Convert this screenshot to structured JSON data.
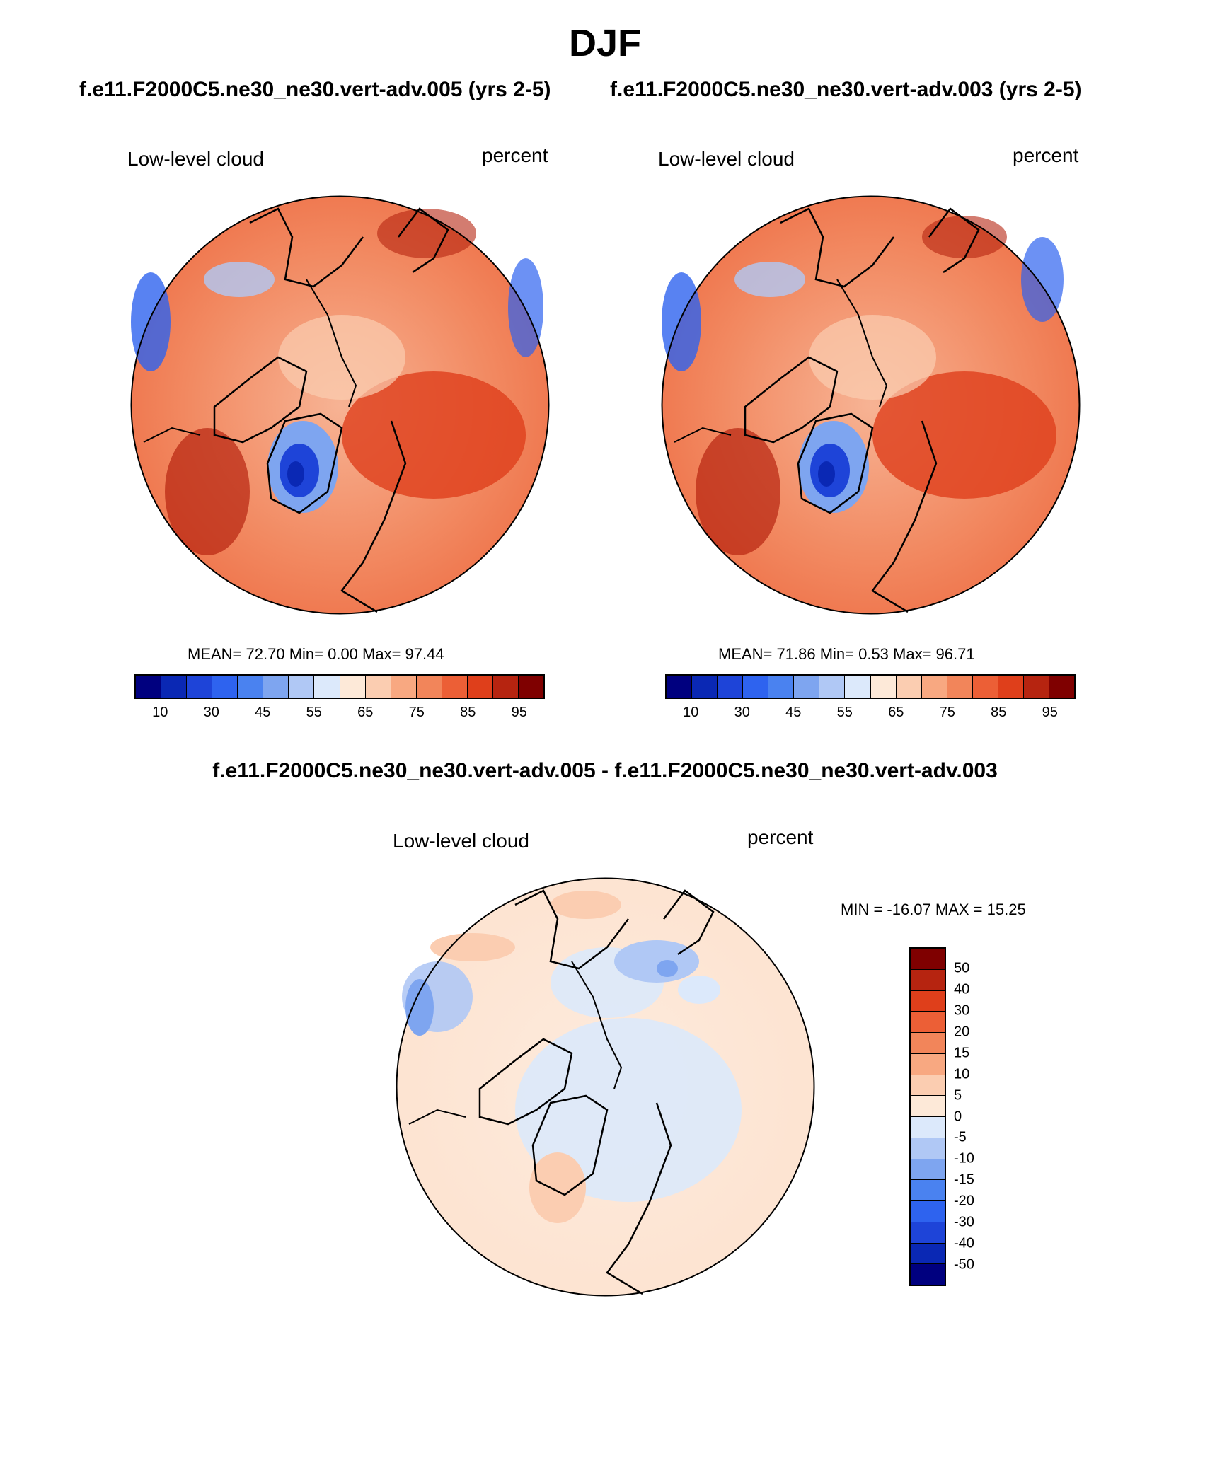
{
  "title": "DJF",
  "left_case": "f.e11.F2000C5.ne30_ne30.vert-adv.005 (yrs 2-5)",
  "right_case": "f.e11.F2000C5.ne30_ne30.vert-adv.003 (yrs 2-5)",
  "diff_title": "f.e11.F2000C5.ne30_ne30.vert-adv.005 - f.e11.F2000C5.ne30_ne30.vert-adv.003",
  "panels": [
    {
      "variable": "Low-level cloud",
      "units": "percent",
      "stats": "MEAN=  72.70  Min=   0.00  Max=  97.44",
      "mean": 72.7,
      "min": 0.0,
      "max": 97.44
    },
    {
      "variable": "Low-level cloud",
      "units": "percent",
      "stats": "MEAN=  71.86  Min=   0.53  Max=  96.71",
      "mean": 71.86,
      "min": 0.53,
      "max": 96.71
    },
    {
      "variable": "Low-level cloud",
      "units": "percent",
      "stats": "MIN = -16.07 MAX =  15.25",
      "min": -16.07,
      "max": 15.25
    }
  ],
  "abs_colorbar": {
    "labels": [
      "10",
      "30",
      "45",
      "55",
      "65",
      "75",
      "85",
      "95"
    ],
    "colors": [
      "#00007f",
      "#0a28b4",
      "#1e44d8",
      "#2e63ef",
      "#4a82f0",
      "#7ea5f0",
      "#b0c8f5",
      "#dce9fb",
      "#fde9d8",
      "#fbcdb1",
      "#f8a881",
      "#f2855a",
      "#ec5f36",
      "#df3f1b",
      "#b62410",
      "#7f0000"
    ]
  },
  "diff_colorbar": {
    "labels": [
      "50",
      "40",
      "30",
      "20",
      "15",
      "10",
      "5",
      "0",
      "-5",
      "-10",
      "-15",
      "-20",
      "-30",
      "-40",
      "-50"
    ],
    "colors": [
      "#7f0000",
      "#b62410",
      "#df3f1b",
      "#ec5f36",
      "#f2855a",
      "#f8a881",
      "#fbcdb1",
      "#fde9d8",
      "#dce9fb",
      "#b0c8f5",
      "#7ea5f0",
      "#4a82f0",
      "#2e63ef",
      "#1e44d8",
      "#0a28b4",
      "#00007f"
    ]
  }
}
